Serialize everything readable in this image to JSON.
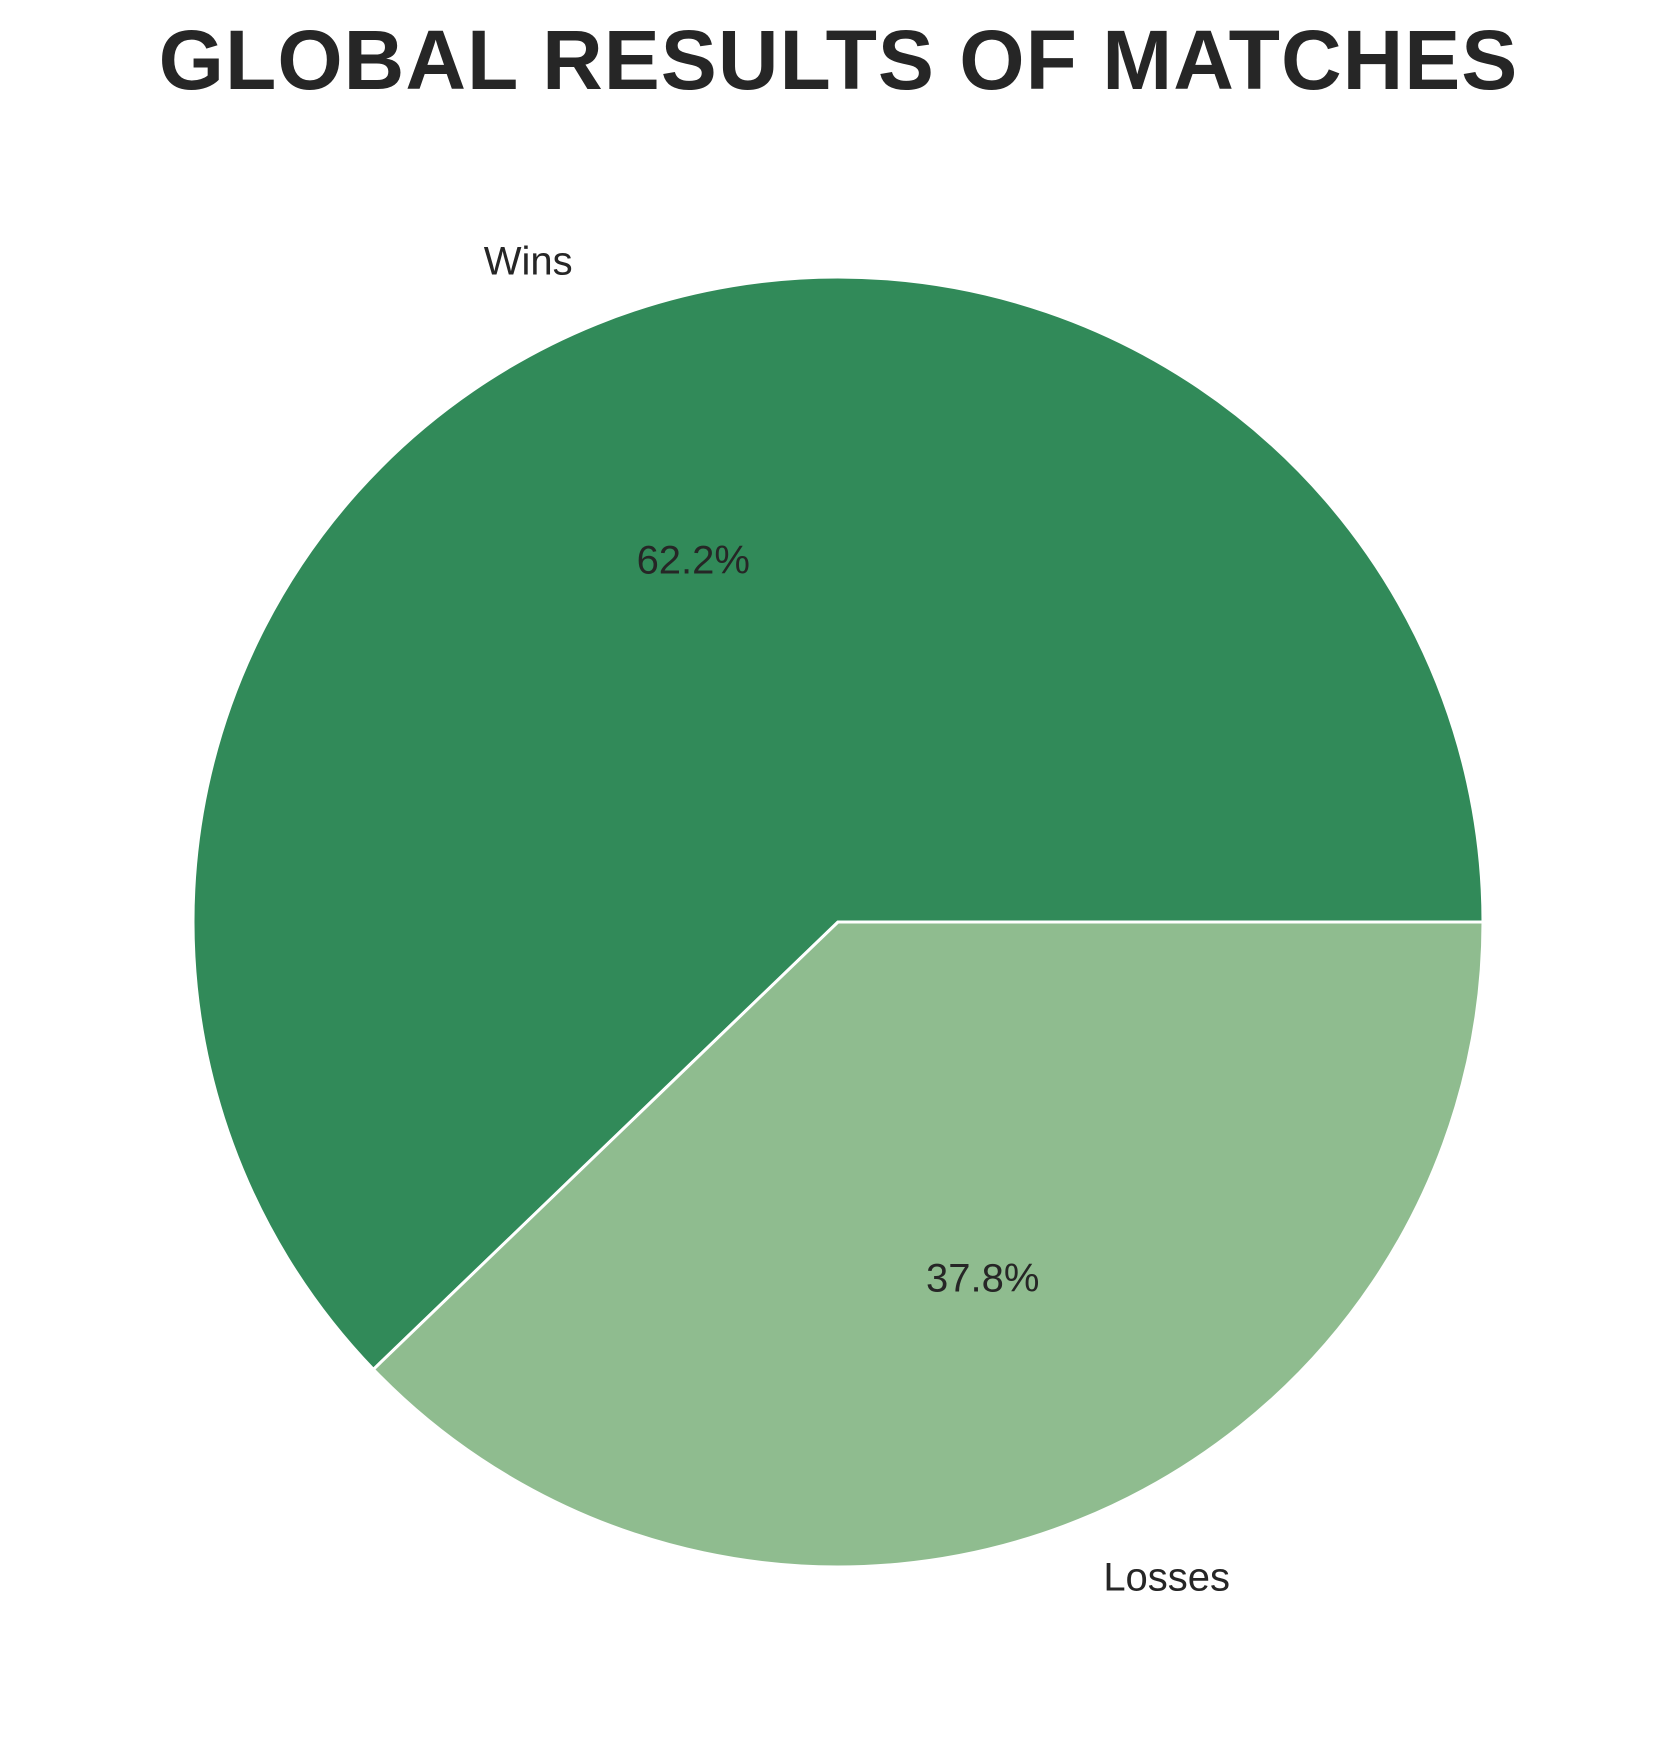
{
  "chart_data": {
    "type": "pie",
    "title": "GLOBAL RESULTS OF MATCHES",
    "labels": [
      "Wins",
      "Losses"
    ],
    "values": [
      62.2,
      37.8
    ],
    "value_labels": [
      "62.2%",
      "37.8%"
    ],
    "colors": [
      "#318a59",
      "#8fbc8f"
    ],
    "start_angle_deg": 0,
    "direction": "counterclockwise",
    "edge_color": "#ffffff"
  }
}
